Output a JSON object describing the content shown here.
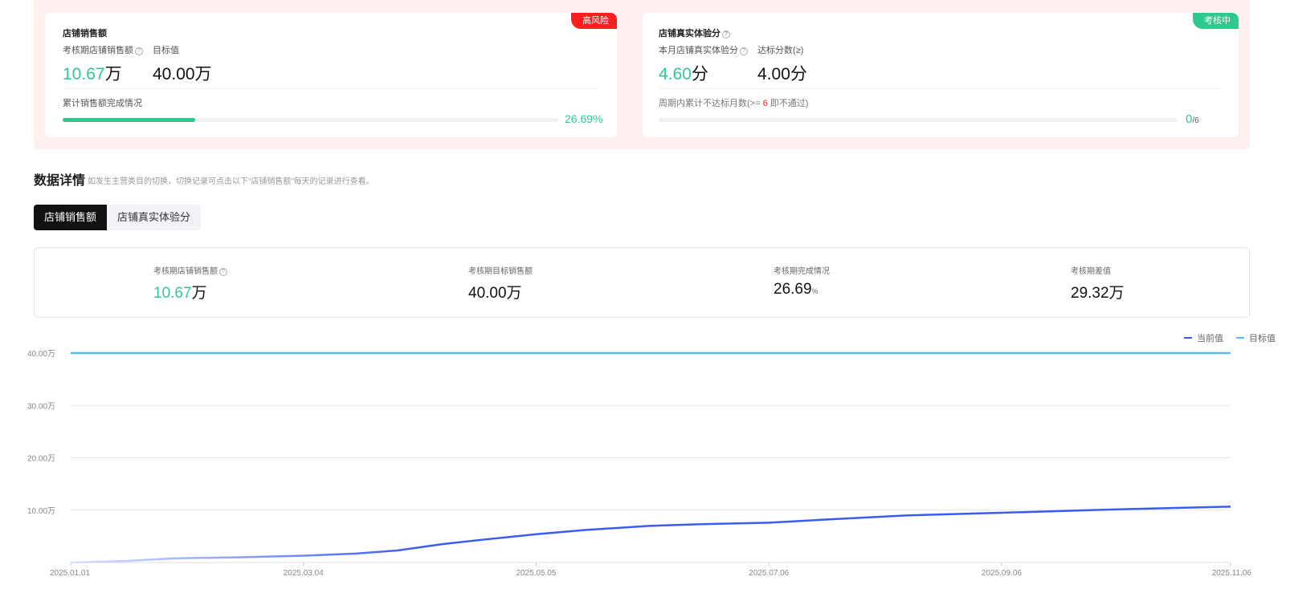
{
  "sales_card": {
    "title": "店铺销售额",
    "badge": "高风险",
    "current_label": "考核期店铺销售额",
    "current_value": "10.67",
    "current_unit": "万",
    "target_label": "目标值",
    "target_value": "40.00万",
    "progress_label": "累计销售额完成情况",
    "progress_percent": 26.69,
    "progress_text": "26.69%"
  },
  "experience_card": {
    "title": "店铺真实体验分",
    "badge": "考核中",
    "current_label": "本月店铺真实体验分",
    "current_value": "4.60",
    "current_unit": "分",
    "target_label": "达标分数(≥)",
    "target_value": "4.00分",
    "progress_label_prefix": "周期内累计不达标月数(>=",
    "progress_label_num": "6",
    "progress_label_suffix": "即不通过)",
    "progress_done": "0",
    "progress_total": "/6",
    "progress_percent": 0
  },
  "details": {
    "title": "数据详情",
    "hint": "如发生主营类目的切换，切换记录可点击以下“店铺销售额”每天的记录进行查看。",
    "tabs": [
      "店铺销售额",
      "店铺真实体验分"
    ],
    "active_tab": 0
  },
  "stats": [
    {
      "label": "考核期店铺销售额",
      "value": "10.67",
      "unit": "万",
      "help": true
    },
    {
      "label": "考核期目标销售额",
      "value": "40.00",
      "unit": "万"
    },
    {
      "label": "考核期完成情况",
      "value": "26.69",
      "unit": "%"
    },
    {
      "label": "考核期差值",
      "value": "29.32",
      "unit": "万"
    }
  ],
  "colors": {
    "green": "#2fc98f",
    "red": "#ff1e1e",
    "current": "#3b5bf5",
    "target": "#5ab8f0"
  },
  "chart_data": {
    "type": "line",
    "ylim": [
      0,
      40
    ],
    "yticks": [
      "40.00万",
      "30.00万",
      "20.00万",
      "10.00万"
    ],
    "ytick_values": [
      40,
      30,
      20,
      10
    ],
    "xticks": [
      "2025.01.01",
      "2025.03.04",
      "2025.05.05",
      "2025.07.06",
      "2025.09.06",
      "2025.11.06"
    ],
    "grid": true,
    "legend": "top-right",
    "series": [
      {
        "name": "当前值",
        "color": "#3b5bf5",
        "x": [
          "2025-01-01",
          "2025-01-16",
          "2025-01-29",
          "2025-02-15",
          "2025-03-04",
          "2025-03-18",
          "2025-03-29",
          "2025-04-10",
          "2025-04-20",
          "2025-05-05",
          "2025-05-18",
          "2025-06-04",
          "2025-06-17",
          "2025-07-06",
          "2025-07-21",
          "2025-08-12",
          "2025-09-06",
          "2025-10-04",
          "2025-11-06"
        ],
        "y": [
          0,
          0.3,
          0.8,
          1.0,
          1.3,
          1.7,
          2.3,
          3.5,
          4.3,
          5.4,
          6.2,
          7.0,
          7.3,
          7.6,
          8.2,
          9.0,
          9.5,
          10.1,
          10.67
        ]
      },
      {
        "name": "目标值",
        "color": "#5ab8f0",
        "x": [
          "2025-01-01",
          "2025-11-06"
        ],
        "y": [
          40,
          40
        ]
      }
    ]
  }
}
